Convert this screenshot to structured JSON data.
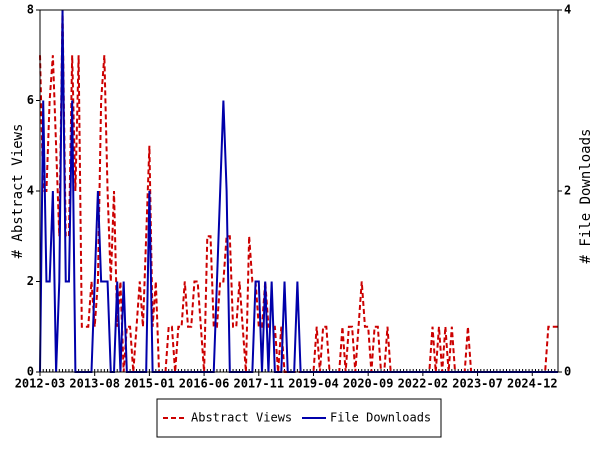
{
  "chart_data": {
    "type": "line",
    "ylabel": "# Abstract Views",
    "y2label": "# File Downloads",
    "x": [
      "2012-03",
      "2012-04",
      "2012-05",
      "2012-06",
      "2012-07",
      "2012-08",
      "2012-09",
      "2012-10",
      "2012-11",
      "2012-12",
      "2013-01",
      "2013-02",
      "2013-03",
      "2013-04",
      "2013-05",
      "2013-06",
      "2013-07",
      "2013-08",
      "2013-09",
      "2013-10",
      "2013-11",
      "2013-12",
      "2014-01",
      "2014-02",
      "2014-03",
      "2014-04",
      "2014-05",
      "2014-06",
      "2014-07",
      "2014-08",
      "2014-09",
      "2014-10",
      "2014-11",
      "2014-12",
      "2015-01",
      "2015-02",
      "2015-03",
      "2015-04",
      "2015-05",
      "2015-06",
      "2015-07",
      "2015-08",
      "2015-09",
      "2015-10",
      "2015-11",
      "2015-12",
      "2016-01",
      "2016-02",
      "2016-03",
      "2016-04",
      "2016-05",
      "2016-06",
      "2016-07",
      "2016-08",
      "2016-09",
      "2016-10",
      "2016-11",
      "2016-12",
      "2017-01",
      "2017-02",
      "2017-03",
      "2017-04",
      "2017-05",
      "2017-06",
      "2017-07",
      "2017-08",
      "2017-09",
      "2017-10",
      "2017-11",
      "2017-12",
      "2018-01",
      "2018-02",
      "2018-03",
      "2018-04",
      "2018-05",
      "2018-06",
      "2018-07",
      "2018-08",
      "2018-09",
      "2018-10",
      "2018-11",
      "2018-12",
      "2019-01",
      "2019-02",
      "2019-03",
      "2019-04",
      "2019-05",
      "2019-06",
      "2019-07",
      "2019-08",
      "2019-09",
      "2019-10",
      "2019-11",
      "2019-12",
      "2020-01",
      "2020-02",
      "2020-03",
      "2020-04",
      "2020-05",
      "2020-06",
      "2020-07",
      "2020-08",
      "2020-09",
      "2020-10",
      "2020-11",
      "2020-12",
      "2021-01",
      "2021-02",
      "2021-03",
      "2021-04",
      "2021-05",
      "2021-06",
      "2021-07",
      "2021-08",
      "2021-09",
      "2021-10",
      "2021-11",
      "2021-12",
      "2022-01",
      "2022-02",
      "2022-03",
      "2022-04",
      "2022-05",
      "2022-06",
      "2022-07",
      "2022-08",
      "2022-09",
      "2022-10",
      "2022-11",
      "2022-12",
      "2023-01",
      "2023-02",
      "2023-03",
      "2023-04",
      "2023-05",
      "2023-06",
      "2023-07",
      "2023-08",
      "2023-09",
      "2023-10",
      "2023-11",
      "2023-12",
      "2024-01",
      "2024-02",
      "2024-03",
      "2024-04",
      "2024-05",
      "2024-06",
      "2024-07",
      "2024-08",
      "2024-09",
      "2024-10",
      "2024-11",
      "2024-12",
      "2025-01",
      "2025-02",
      "2025-03",
      "2025-04",
      "2025-05",
      "2025-06",
      "2025-07",
      "2025-08"
    ],
    "xticks": [
      "2012-03",
      "2013-08",
      "2015-01",
      "2016-06",
      "2017-11",
      "2019-04",
      "2020-09",
      "2022-02",
      "2023-07",
      "2024-12"
    ],
    "ylim": [
      0,
      8
    ],
    "yticks": [
      0,
      2,
      4,
      6,
      8
    ],
    "y2lim": [
      0,
      4
    ],
    "y2ticks": [
      0,
      2,
      4
    ],
    "series": [
      {
        "name": "Abstract Views",
        "color": "#cc0000",
        "dash": true,
        "values": [
          7,
          4,
          4,
          6,
          7,
          5,
          3,
          8,
          3,
          3,
          7,
          4,
          7,
          1,
          1,
          1,
          2,
          1,
          2,
          6,
          7,
          4,
          2,
          4,
          1,
          2,
          0,
          1,
          1,
          0,
          1,
          2,
          1,
          3,
          5,
          1,
          2,
          0,
          0,
          0,
          1,
          1,
          0,
          1,
          1,
          2,
          1,
          1,
          2,
          2,
          1,
          0,
          3,
          3,
          1,
          1,
          2,
          2,
          3,
          3,
          1,
          1,
          2,
          1,
          0,
          3,
          2,
          2,
          1,
          1,
          2,
          1,
          1,
          1,
          0,
          1,
          0,
          0,
          0,
          0,
          0,
          0,
          0,
          0,
          0,
          0,
          1,
          0,
          1,
          1,
          0,
          0,
          0,
          0,
          1,
          0,
          1,
          1,
          0,
          1,
          2,
          1,
          1,
          0,
          1,
          1,
          0,
          0,
          1,
          0,
          0,
          0,
          0,
          0,
          0,
          0,
          0,
          0,
          0,
          0,
          0,
          0,
          1,
          0,
          1,
          0,
          1,
          0,
          1,
          0,
          0,
          0,
          0,
          1,
          0,
          0,
          0,
          0,
          0,
          0,
          0,
          0,
          0,
          0,
          0,
          0,
          0,
          0,
          0,
          0,
          0,
          0,
          0,
          0,
          0,
          0,
          0,
          0,
          1,
          1,
          1,
          1
        ]
      },
      {
        "name": "File Downloads",
        "color": "#0000aa",
        "axis": "y2",
        "values": [
          0,
          3,
          1,
          1,
          2,
          0,
          1,
          4,
          1,
          1,
          3,
          0,
          0,
          0,
          0,
          0,
          0,
          1,
          2,
          1,
          1,
          1,
          0,
          0,
          1,
          0,
          1,
          0,
          0,
          0,
          0,
          0,
          0,
          0,
          2,
          0,
          0,
          0,
          0,
          0,
          0,
          0,
          0,
          0,
          0,
          0,
          0,
          0,
          0,
          0,
          0,
          0,
          0,
          0,
          0,
          1,
          2,
          3,
          2,
          0,
          0,
          0,
          0,
          0,
          0,
          0,
          0,
          1,
          1,
          0,
          1,
          0,
          1,
          0,
          0,
          0,
          1,
          0,
          0,
          0,
          1,
          0,
          0,
          0,
          0,
          0,
          0,
          0,
          0,
          0,
          0,
          0,
          0,
          0,
          0,
          0,
          0,
          0,
          0,
          0,
          0,
          0,
          0,
          0,
          0,
          0,
          0,
          0,
          0,
          0,
          0,
          0,
          0,
          0,
          0,
          0,
          0,
          0,
          0,
          0,
          0,
          0,
          0,
          0,
          0,
          0,
          0,
          0,
          0,
          0,
          0,
          0,
          0,
          0,
          0,
          0,
          0,
          0,
          0,
          0,
          0,
          0,
          0,
          0,
          0,
          0,
          0,
          0,
          0,
          0,
          0,
          0,
          0,
          0,
          0,
          0,
          0,
          0,
          0,
          0,
          0,
          0
        ]
      }
    ]
  }
}
